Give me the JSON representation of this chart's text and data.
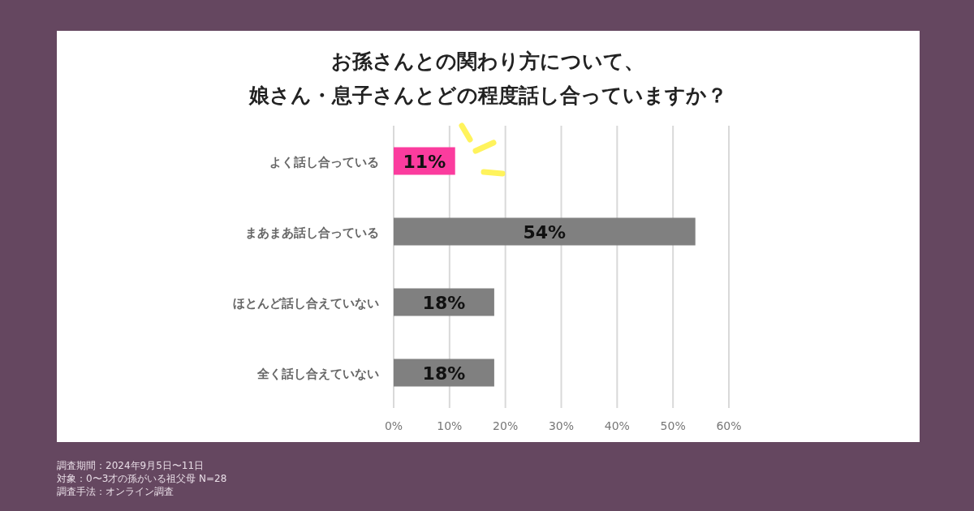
{
  "chart_data": {
    "type": "bar",
    "orientation": "horizontal",
    "title": "お孫さんとの関わり方について、",
    "subtitle": "娘さん・息子さんとどの程度話し合っていますか？",
    "categories": [
      "よく話し合っている",
      "まあまあ話し合っている",
      "ほとんど話し合えていない",
      "全く話し合えていない"
    ],
    "values": [
      11,
      54,
      18,
      18
    ],
    "colors": [
      "#fb3c9e",
      "#808080",
      "#808080",
      "#808080"
    ],
    "value_labels": [
      "11%",
      "54%",
      "18%",
      "18%"
    ],
    "xlim": [
      0,
      60
    ],
    "xticks": [
      {
        "value": 0,
        "label": "0%"
      },
      {
        "value": 10,
        "label": "10%"
      },
      {
        "value": 20,
        "label": "20%"
      },
      {
        "value": 30,
        "label": "30%"
      },
      {
        "value": 40,
        "label": "40%"
      },
      {
        "value": 50,
        "label": "50%"
      },
      {
        "value": 60,
        "label": "60%"
      }
    ],
    "grid": "x",
    "annotations": [
      "調査期間：2024年9月5日〜11日",
      "対象：0〜3才の孫がいる祖父母 N=28",
      "調査手法：オンライン調査"
    ]
  }
}
